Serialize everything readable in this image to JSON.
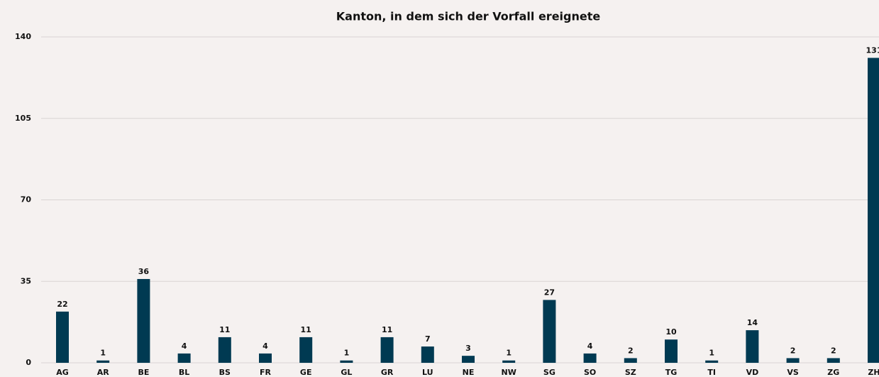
{
  "chart_data": {
    "type": "bar",
    "title": "Kanton, in dem sich der Vorfall ereignete",
    "categories": [
      "AG",
      "AR",
      "BE",
      "BL",
      "BS",
      "FR",
      "GE",
      "GL",
      "GR",
      "LU",
      "NE",
      "NW",
      "SG",
      "SO",
      "SZ",
      "TG",
      "TI",
      "VD",
      "VS",
      "ZG",
      "ZH"
    ],
    "values": [
      22,
      1,
      36,
      4,
      11,
      4,
      11,
      1,
      11,
      7,
      3,
      1,
      27,
      4,
      2,
      10,
      1,
      14,
      2,
      2,
      131
    ],
    "color": "#003a52",
    "ylim": [
      0,
      140
    ],
    "yticks": [
      0,
      35,
      70,
      105,
      140
    ],
    "grid": true
  }
}
